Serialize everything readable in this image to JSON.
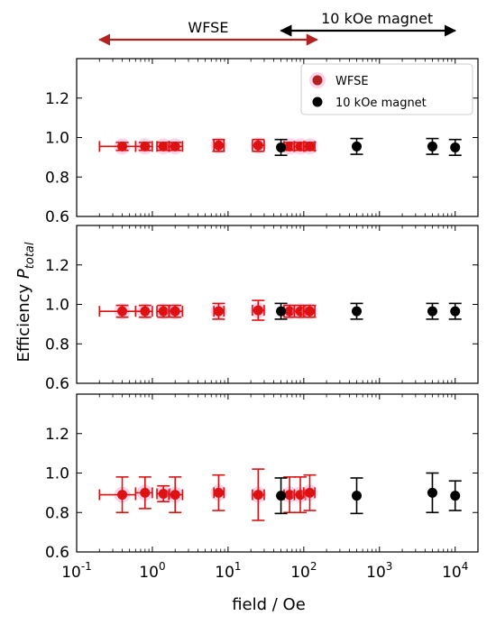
{
  "chart_data": {
    "type": "scatter",
    "xscale": "log",
    "xlim": [
      0.1,
      20000
    ],
    "ylim": [
      0.6,
      1.4
    ],
    "xticks": [
      "10^-1",
      "10^0",
      "10^1",
      "10^2",
      "10^3",
      "10^4"
    ],
    "yticks": [
      "0.6",
      "0.8",
      "1.0",
      "1.2"
    ],
    "xlabel": "field / Oe",
    "ylabel_main": "Efficiency ",
    "ylabel_symbol": "P",
    "ylabel_sub": "total",
    "ranges": [
      {
        "label": "WFSE",
        "from": 0.2,
        "to": 150,
        "color": "#b22222"
      },
      {
        "label": "10 kOe magnet",
        "from": 50,
        "to": 10000,
        "color": "#000000"
      }
    ],
    "legend": {
      "placement": "top-right",
      "entries": [
        "WFSE",
        "10 kOe magnet"
      ]
    },
    "series_colors": {
      "WFSE": "#dd1111",
      "10 kOe magnet": "#000000"
    },
    "panels": [
      {
        "series": [
          {
            "name": "WFSE",
            "points": [
              {
                "x": 0.4,
                "y": 0.955,
                "xerr": [
                  0.2,
                  0.6
                ],
                "yerr": 0.02
              },
              {
                "x": 0.8,
                "y": 0.955,
                "xerr": [
                  0.6,
                  1.0
                ],
                "yerr": 0.02
              },
              {
                "x": 1.4,
                "y": 0.955,
                "xerr": [
                  1.15,
                  1.7
                ],
                "yerr": 0.02
              },
              {
                "x": 2.0,
                "y": 0.955,
                "xerr": [
                  1.65,
                  2.5
                ],
                "yerr": 0.02
              },
              {
                "x": 7.5,
                "y": 0.96,
                "xerr": [
                  6.5,
                  8.8
                ],
                "yerr": 0.03
              },
              {
                "x": 25,
                "y": 0.96,
                "xerr": [
                  21,
                  30
                ],
                "yerr": 0.03
              },
              {
                "x": 65,
                "y": 0.955,
                "xerr": [
                  55,
                  75
                ],
                "yerr": 0.02
              },
              {
                "x": 90,
                "y": 0.955,
                "xerr": [
                  75,
                  105
                ],
                "yerr": 0.02
              },
              {
                "x": 120,
                "y": 0.955,
                "xerr": [
                  100,
                  140
                ],
                "yerr": 0.02
              }
            ]
          },
          {
            "name": "10 kOe magnet",
            "points": [
              {
                "x": 50,
                "y": 0.95,
                "yerr": 0.04
              },
              {
                "x": 500,
                "y": 0.955,
                "yerr": 0.04
              },
              {
                "x": 5000,
                "y": 0.955,
                "yerr": 0.04
              },
              {
                "x": 10000,
                "y": 0.95,
                "yerr": 0.04
              }
            ]
          }
        ]
      },
      {
        "series": [
          {
            "name": "WFSE",
            "points": [
              {
                "x": 0.4,
                "y": 0.965,
                "xerr": [
                  0.2,
                  0.6
                ],
                "yerr": 0.03
              },
              {
                "x": 0.8,
                "y": 0.965,
                "xerr": [
                  0.6,
                  1.0
                ],
                "yerr": 0.03
              },
              {
                "x": 1.4,
                "y": 0.965,
                "xerr": [
                  1.15,
                  1.7
                ],
                "yerr": 0.03
              },
              {
                "x": 2.0,
                "y": 0.965,
                "xerr": [
                  1.65,
                  2.5
                ],
                "yerr": 0.03
              },
              {
                "x": 7.5,
                "y": 0.965,
                "xerr": [
                  6.5,
                  8.8
                ],
                "yerr": 0.04
              },
              {
                "x": 25,
                "y": 0.97,
                "xerr": [
                  21,
                  30
                ],
                "yerr": 0.05
              },
              {
                "x": 65,
                "y": 0.965,
                "xerr": [
                  55,
                  75
                ],
                "yerr": 0.03
              },
              {
                "x": 90,
                "y": 0.965,
                "xerr": [
                  75,
                  105
                ],
                "yerr": 0.03
              },
              {
                "x": 120,
                "y": 0.965,
                "xerr": [
                  100,
                  140
                ],
                "yerr": 0.03
              }
            ]
          },
          {
            "name": "10 kOe magnet",
            "points": [
              {
                "x": 50,
                "y": 0.965,
                "yerr": 0.04
              },
              {
                "x": 500,
                "y": 0.965,
                "yerr": 0.04
              },
              {
                "x": 5000,
                "y": 0.965,
                "yerr": 0.04
              },
              {
                "x": 10000,
                "y": 0.965,
                "yerr": 0.04
              }
            ]
          }
        ]
      },
      {
        "series": [
          {
            "name": "WFSE",
            "points": [
              {
                "x": 0.4,
                "y": 0.89,
                "xerr": [
                  0.2,
                  0.6
                ],
                "yerr": 0.09
              },
              {
                "x": 0.8,
                "y": 0.9,
                "xerr": [
                  0.6,
                  1.0
                ],
                "yerr": 0.08
              },
              {
                "x": 1.4,
                "y": 0.895,
                "xerr": [
                  1.15,
                  1.7
                ],
                "yerr": 0.04
              },
              {
                "x": 2.0,
                "y": 0.89,
                "xerr": [
                  1.65,
                  2.5
                ],
                "yerr": 0.09
              },
              {
                "x": 7.5,
                "y": 0.9,
                "xerr": [
                  6.5,
                  8.8
                ],
                "yerr": 0.09
              },
              {
                "x": 25,
                "y": 0.89,
                "xerr": [
                  21,
                  30
                ],
                "yerr": 0.13
              },
              {
                "x": 65,
                "y": 0.89,
                "xerr": [
                  55,
                  75
                ],
                "yerr": 0.09
              },
              {
                "x": 90,
                "y": 0.89,
                "xerr": [
                  75,
                  105
                ],
                "yerr": 0.09
              },
              {
                "x": 120,
                "y": 0.9,
                "xerr": [
                  100,
                  140
                ],
                "yerr": 0.09
              }
            ]
          },
          {
            "name": "10 kOe magnet",
            "points": [
              {
                "x": 50,
                "y": 0.885,
                "yerr": 0.09
              },
              {
                "x": 500,
                "y": 0.885,
                "yerr": 0.09
              },
              {
                "x": 5000,
                "y": 0.9,
                "yerr": 0.1
              },
              {
                "x": 10000,
                "y": 0.885,
                "yerr": 0.075
              }
            ]
          }
        ]
      }
    ]
  }
}
